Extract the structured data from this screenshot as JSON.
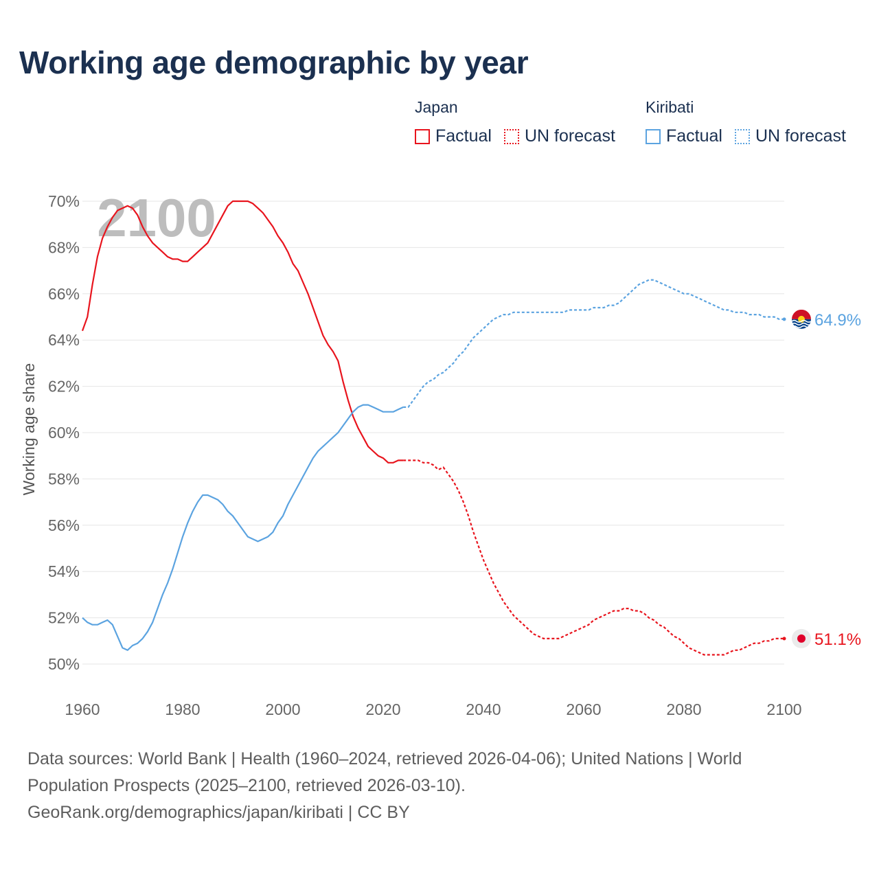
{
  "title": "Working age demographic by year",
  "legend": {
    "groups": [
      {
        "name": "Japan",
        "factual_label": "Factual",
        "forecast_label": "UN forecast",
        "color": "#e8141d"
      },
      {
        "name": "Kiribati",
        "factual_label": "Factual",
        "forecast_label": "UN forecast",
        "color": "#5ba3e0"
      }
    ]
  },
  "chart_data": {
    "type": "line",
    "ylabel": "Working age share",
    "xlabel": "",
    "xlim": [
      1960,
      2100
    ],
    "ylim": [
      50,
      70
    ],
    "x_ticks": [
      "1960",
      "1980",
      "2000",
      "2020",
      "2040",
      "2060",
      "2080",
      "2100"
    ],
    "y_ticks": [
      "50%",
      "52%",
      "54%",
      "56%",
      "58%",
      "60%",
      "62%",
      "64%",
      "66%",
      "68%",
      "70%"
    ],
    "grid": true,
    "year_watermark": "2100",
    "forecast_start_year": 2024,
    "series": [
      {
        "name": "Japan",
        "color": "#e8141d",
        "end_label": "51.1%",
        "x": [
          1960,
          1961,
          1962,
          1963,
          1964,
          1965,
          1966,
          1967,
          1968,
          1969,
          1970,
          1971,
          1972,
          1973,
          1974,
          1975,
          1976,
          1977,
          1978,
          1979,
          1980,
          1981,
          1982,
          1983,
          1984,
          1985,
          1986,
          1987,
          1988,
          1989,
          1990,
          1991,
          1992,
          1993,
          1994,
          1995,
          1996,
          1997,
          1998,
          1999,
          2000,
          2001,
          2002,
          2003,
          2004,
          2005,
          2006,
          2007,
          2008,
          2009,
          2010,
          2011,
          2012,
          2013,
          2014,
          2015,
          2016,
          2017,
          2018,
          2019,
          2020,
          2021,
          2022,
          2023,
          2024,
          2025,
          2026,
          2027,
          2028,
          2029,
          2030,
          2031,
          2032,
          2033,
          2034,
          2035,
          2036,
          2037,
          2038,
          2039,
          2040,
          2041,
          2042,
          2043,
          2044,
          2045,
          2046,
          2047,
          2048,
          2049,
          2050,
          2051,
          2052,
          2053,
          2054,
          2055,
          2056,
          2057,
          2058,
          2059,
          2060,
          2061,
          2062,
          2063,
          2064,
          2065,
          2066,
          2067,
          2068,
          2069,
          2070,
          2071,
          2072,
          2073,
          2074,
          2075,
          2076,
          2077,
          2078,
          2079,
          2080,
          2081,
          2082,
          2083,
          2084,
          2085,
          2086,
          2087,
          2088,
          2089,
          2090,
          2091,
          2092,
          2093,
          2094,
          2095,
          2096,
          2097,
          2098,
          2099,
          2100
        ],
        "values": [
          64.4,
          65.0,
          66.4,
          67.6,
          68.4,
          68.9,
          69.3,
          69.6,
          69.7,
          69.8,
          69.7,
          69.4,
          68.9,
          68.5,
          68.2,
          68.0,
          67.8,
          67.6,
          67.5,
          67.5,
          67.4,
          67.4,
          67.6,
          67.8,
          68.0,
          68.2,
          68.6,
          69.0,
          69.4,
          69.8,
          70.0,
          70.0,
          70.0,
          70.0,
          69.9,
          69.7,
          69.5,
          69.2,
          68.9,
          68.5,
          68.2,
          67.8,
          67.3,
          67.0,
          66.5,
          66.0,
          65.4,
          64.8,
          64.2,
          63.8,
          63.5,
          63.1,
          62.2,
          61.4,
          60.7,
          60.2,
          59.8,
          59.4,
          59.2,
          59.0,
          58.9,
          58.7,
          58.7,
          58.8,
          58.8,
          58.8,
          58.8,
          58.8,
          58.7,
          58.7,
          58.6,
          58.4,
          58.5,
          58.2,
          57.9,
          57.5,
          57.0,
          56.4,
          55.7,
          55.1,
          54.5,
          54.0,
          53.5,
          53.1,
          52.7,
          52.4,
          52.1,
          51.9,
          51.7,
          51.5,
          51.3,
          51.2,
          51.1,
          51.1,
          51.1,
          51.1,
          51.2,
          51.3,
          51.4,
          51.5,
          51.6,
          51.7,
          51.9,
          52.0,
          52.1,
          52.2,
          52.3,
          52.3,
          52.4,
          52.4,
          52.3,
          52.3,
          52.2,
          52.0,
          51.9,
          51.7,
          51.6,
          51.4,
          51.2,
          51.1,
          50.9,
          50.7,
          50.6,
          50.5,
          50.4,
          50.4,
          50.4,
          50.4,
          50.4,
          50.5,
          50.6,
          50.6,
          50.7,
          50.8,
          50.9,
          50.9,
          51.0,
          51.0,
          51.1,
          51.1,
          51.1
        ]
      },
      {
        "name": "Kiribati",
        "color": "#5ba3e0",
        "end_label": "64.9%",
        "x": [
          1960,
          1961,
          1962,
          1963,
          1964,
          1965,
          1966,
          1967,
          1968,
          1969,
          1970,
          1971,
          1972,
          1973,
          1974,
          1975,
          1976,
          1977,
          1978,
          1979,
          1980,
          1981,
          1982,
          1983,
          1984,
          1985,
          1986,
          1987,
          1988,
          1989,
          1990,
          1991,
          1992,
          1993,
          1994,
          1995,
          1996,
          1997,
          1998,
          1999,
          2000,
          2001,
          2002,
          2003,
          2004,
          2005,
          2006,
          2007,
          2008,
          2009,
          2010,
          2011,
          2012,
          2013,
          2014,
          2015,
          2016,
          2017,
          2018,
          2019,
          2020,
          2021,
          2022,
          2023,
          2024,
          2025,
          2026,
          2027,
          2028,
          2029,
          2030,
          2031,
          2032,
          2033,
          2034,
          2035,
          2036,
          2037,
          2038,
          2039,
          2040,
          2041,
          2042,
          2043,
          2044,
          2045,
          2046,
          2047,
          2048,
          2049,
          2050,
          2051,
          2052,
          2053,
          2054,
          2055,
          2056,
          2057,
          2058,
          2059,
          2060,
          2061,
          2062,
          2063,
          2064,
          2065,
          2066,
          2067,
          2068,
          2069,
          2070,
          2071,
          2072,
          2073,
          2074,
          2075,
          2076,
          2077,
          2078,
          2079,
          2080,
          2081,
          2082,
          2083,
          2084,
          2085,
          2086,
          2087,
          2088,
          2089,
          2090,
          2091,
          2092,
          2093,
          2094,
          2095,
          2096,
          2097,
          2098,
          2099,
          2100
        ],
        "values": [
          52.0,
          51.8,
          51.7,
          51.7,
          51.8,
          51.9,
          51.7,
          51.2,
          50.7,
          50.6,
          50.8,
          50.9,
          51.1,
          51.4,
          51.8,
          52.4,
          53.0,
          53.5,
          54.1,
          54.8,
          55.5,
          56.1,
          56.6,
          57.0,
          57.3,
          57.3,
          57.2,
          57.1,
          56.9,
          56.6,
          56.4,
          56.1,
          55.8,
          55.5,
          55.4,
          55.3,
          55.4,
          55.5,
          55.7,
          56.1,
          56.4,
          56.9,
          57.3,
          57.7,
          58.1,
          58.5,
          58.9,
          59.2,
          59.4,
          59.6,
          59.8,
          60.0,
          60.3,
          60.6,
          60.9,
          61.1,
          61.2,
          61.2,
          61.1,
          61.0,
          60.9,
          60.9,
          60.9,
          61.0,
          61.1,
          61.1,
          61.4,
          61.7,
          62.0,
          62.2,
          62.3,
          62.5,
          62.6,
          62.8,
          63.0,
          63.3,
          63.5,
          63.8,
          64.1,
          64.3,
          64.5,
          64.7,
          64.9,
          65.0,
          65.1,
          65.1,
          65.2,
          65.2,
          65.2,
          65.2,
          65.2,
          65.2,
          65.2,
          65.2,
          65.2,
          65.2,
          65.2,
          65.3,
          65.3,
          65.3,
          65.3,
          65.3,
          65.4,
          65.4,
          65.4,
          65.5,
          65.5,
          65.6,
          65.8,
          66.0,
          66.2,
          66.4,
          66.5,
          66.6,
          66.6,
          66.5,
          66.4,
          66.3,
          66.2,
          66.1,
          66.0,
          66.0,
          65.9,
          65.8,
          65.7,
          65.6,
          65.5,
          65.4,
          65.3,
          65.3,
          65.2,
          65.2,
          65.2,
          65.1,
          65.1,
          65.1,
          65.0,
          65.0,
          65.0,
          64.9,
          64.9
        ]
      }
    ]
  },
  "footer": {
    "line1": "Data sources: World Bank | Health (1960–2024, retrieved 2026-04-06); United Nations | World",
    "line2": "Population Prospects (2025–2100, retrieved 2026-03-10).",
    "line3": "GeoRank.org/demographics/japan/kiribati | CC BY"
  }
}
